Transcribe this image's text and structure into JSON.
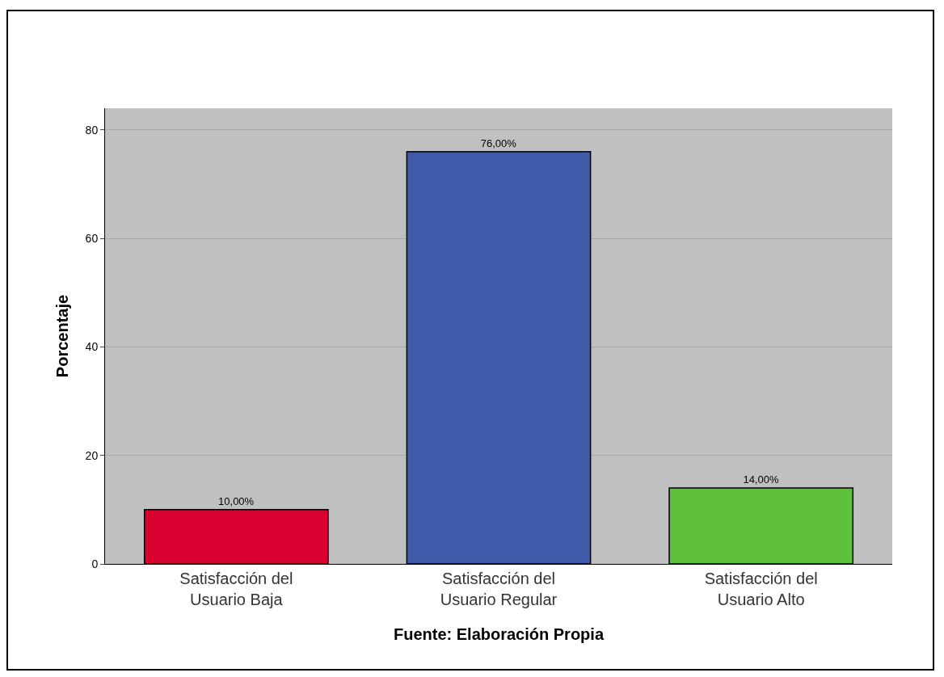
{
  "chart_data": {
    "type": "bar",
    "xlabel": "Fuente: Elaboración Propia",
    "ylabel": "Porcentaje",
    "categories": [
      "Satisfacción del Usuario Baja",
      "Satisfacción del Usuario Regular",
      "Satisfacción del Usuario Alto"
    ],
    "values": [
      10,
      76,
      14
    ],
    "colors": [
      "#d8002e",
      "#3f5ba9",
      "#5fc13a"
    ],
    "value_labels": [
      "10,00%",
      "76,00%",
      "14,00%"
    ],
    "ylim": [
      0,
      84
    ],
    "yticks": [
      0,
      20,
      40,
      60,
      80
    ],
    "grid": "y"
  }
}
